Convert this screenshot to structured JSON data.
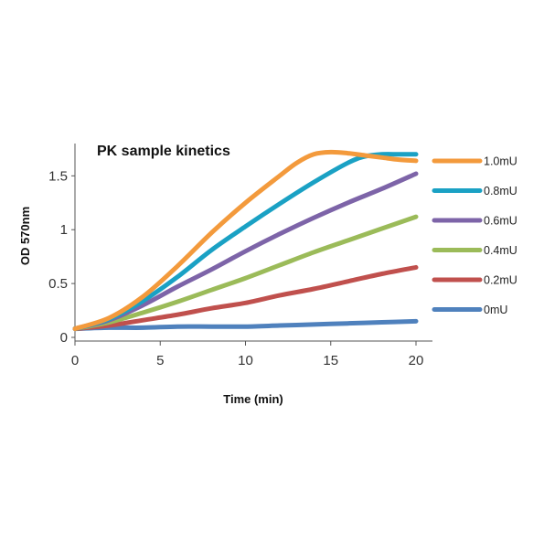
{
  "chart_data": {
    "type": "line",
    "title": "PK sample kinetics",
    "xlabel": "Time (min)",
    "ylabel": "OD 570nm",
    "xlim": [
      0,
      20
    ],
    "ylim": [
      0,
      1.8
    ],
    "xticks": [
      0,
      5,
      10,
      15,
      20
    ],
    "xtick_labels": [
      "0",
      "5",
      "10",
      "15",
      "20"
    ],
    "yticks": [
      0,
      0.5,
      1,
      1.5
    ],
    "ytick_labels": [
      "0",
      "0.5",
      "1",
      "1.5"
    ],
    "grid": false,
    "legend_position": "right",
    "series": [
      {
        "name": "1.0mU",
        "color": "#F39A3C",
        "x": [
          0,
          2,
          4,
          6,
          8,
          10,
          12,
          13,
          14,
          15,
          16,
          17,
          18,
          19,
          20
        ],
        "y": [
          0.08,
          0.18,
          0.38,
          0.66,
          0.97,
          1.25,
          1.5,
          1.62,
          1.7,
          1.72,
          1.71,
          1.69,
          1.67,
          1.65,
          1.64
        ]
      },
      {
        "name": "0.8mU",
        "color": "#1AA1C4",
        "x": [
          0,
          2,
          4,
          6,
          8,
          10,
          12,
          14,
          16,
          17,
          18,
          19,
          20
        ],
        "y": [
          0.08,
          0.17,
          0.34,
          0.56,
          0.81,
          1.03,
          1.24,
          1.44,
          1.62,
          1.68,
          1.7,
          1.7,
          1.7
        ]
      },
      {
        "name": "0.6mU",
        "color": "#7D64A8",
        "x": [
          0,
          2,
          4,
          6,
          8,
          10,
          12,
          14,
          16,
          18,
          20
        ],
        "y": [
          0.08,
          0.16,
          0.3,
          0.47,
          0.63,
          0.8,
          0.96,
          1.11,
          1.25,
          1.38,
          1.52
        ]
      },
      {
        "name": "0.4mU",
        "color": "#9BBB59",
        "x": [
          0,
          2,
          4,
          6,
          8,
          10,
          12,
          14,
          16,
          18,
          20
        ],
        "y": [
          0.08,
          0.14,
          0.23,
          0.33,
          0.44,
          0.55,
          0.67,
          0.79,
          0.9,
          1.01,
          1.12
        ]
      },
      {
        "name": "0.2mU",
        "color": "#C0504D",
        "x": [
          0,
          2,
          4,
          6,
          8,
          10,
          12,
          14,
          16,
          18,
          20
        ],
        "y": [
          0.08,
          0.11,
          0.16,
          0.21,
          0.27,
          0.32,
          0.39,
          0.45,
          0.52,
          0.59,
          0.65
        ]
      },
      {
        "name": "0mU",
        "color": "#4F81BD",
        "x": [
          0,
          2,
          4,
          6,
          8,
          10,
          12,
          14,
          16,
          18,
          20
        ],
        "y": [
          0.08,
          0.09,
          0.09,
          0.1,
          0.1,
          0.1,
          0.11,
          0.12,
          0.13,
          0.14,
          0.15
        ]
      }
    ]
  }
}
